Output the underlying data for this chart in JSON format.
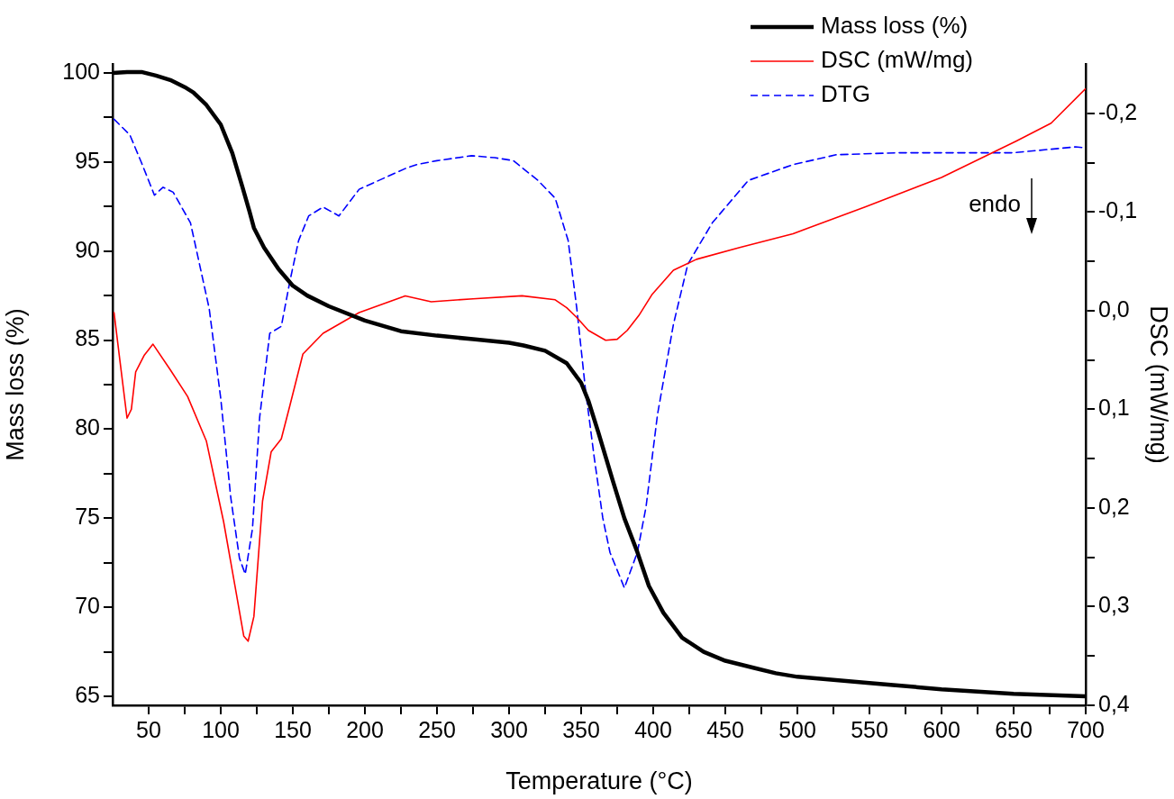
{
  "chart_data": {
    "type": "line",
    "xlabel": "Temperature (°C)",
    "ylabel": "Mass loss (%)",
    "y2label": "DSC (mW/mg)",
    "xlim": [
      25,
      700
    ],
    "xticks": [
      50,
      {
        "value": 75,
        "label": null
      },
      100,
      {
        "value": 125,
        "label": null
      },
      150,
      {
        "value": 175,
        "label": null
      },
      200,
      {
        "value": 225,
        "label": null
      },
      250,
      {
        "value": 275,
        "label": null
      },
      300,
      {
        "value": 325,
        "label": null
      },
      350,
      {
        "value": 375,
        "label": null
      },
      400,
      {
        "value": 425,
        "label": null
      },
      450,
      {
        "value": 475,
        "label": null
      },
      500,
      {
        "value": 525,
        "label": null
      },
      550,
      {
        "value": 575,
        "label": null
      },
      600,
      {
        "value": 625,
        "label": null
      },
      650,
      {
        "value": 675,
        "label": null
      },
      700
    ],
    "ylim": [
      64.5,
      100.5
    ],
    "yticks": [
      65,
      {
        "value": 67.5,
        "label": null
      },
      70,
      {
        "value": 72.5,
        "label": null
      },
      75,
      {
        "value": 77.5,
        "label": null
      },
      80,
      {
        "value": 82.5,
        "label": null
      },
      85,
      {
        "value": 87.5,
        "label": null
      },
      90,
      {
        "value": 92.5,
        "label": null
      },
      95,
      {
        "value": 97.5,
        "label": null
      },
      100
    ],
    "y2lim": [
      0.4,
      -0.25
    ],
    "y2ticks": [
      {
        "value": -0.2,
        "label": "-0,2"
      },
      {
        "value": -0.15,
        "label": null
      },
      {
        "value": -0.1,
        "label": "-0,1"
      },
      {
        "value": -0.05,
        "label": null
      },
      {
        "value": 0,
        "label": "0,0"
      },
      {
        "value": 0.05,
        "label": null
      },
      {
        "value": 0.1,
        "label": "0,1"
      },
      {
        "value": 0.15,
        "label": null
      },
      {
        "value": 0.2,
        "label": "0,2"
      },
      {
        "value": 0.25,
        "label": null
      },
      {
        "value": 0.3,
        "label": "0,3"
      },
      {
        "value": 0.35,
        "label": null
      },
      {
        "value": 0.4,
        "label": "0,4"
      }
    ],
    "grid": false,
    "legend": "top right",
    "marker": "none",
    "annotations": [
      "endo"
    ],
    "series": [
      {
        "name": "Mass loss (%)",
        "color": "#000000",
        "line_style": "solid",
        "x": [
          25,
          35,
          45,
          55,
          65,
          75,
          81,
          90,
          100,
          108,
          115,
          120,
          123,
          130,
          140,
          150,
          160,
          175,
          200,
          225,
          250,
          275,
          300,
          310,
          325,
          340,
          350,
          355,
          362,
          372,
          380,
          389,
          397,
          407,
          420,
          435,
          450,
          470,
          485,
          500,
          550,
          600,
          650,
          700
        ],
        "values": [
          100,
          100.05,
          100.05,
          99.85,
          99.6,
          99.2,
          98.9,
          98.2,
          97.1,
          95.5,
          93.6,
          92.2,
          91.3,
          90.2,
          89.0,
          88.05,
          87.5,
          86.9,
          86.1,
          85.5,
          85.25,
          85.05,
          84.85,
          84.7,
          84.4,
          83.7,
          82.6,
          81.6,
          79.8,
          77.1,
          75.0,
          73.1,
          71.2,
          69.7,
          68.3,
          67.5,
          67.0,
          66.6,
          66.3,
          66.1,
          65.75,
          65.4,
          65.15,
          65.0
        ]
      },
      {
        "name": "DSC (mW/mg)",
        "color": "#ff0000",
        "line_style": "solid",
        "axis": "y2",
        "x": [
          26,
          30,
          35,
          38,
          41,
          47,
          53,
          65,
          77,
          90,
          102,
          110,
          116,
          119,
          123,
          129,
          135,
          142,
          148,
          157,
          171,
          196,
          228,
          246,
          275,
          309,
          332,
          340,
          347,
          355,
          367,
          375,
          382,
          390,
          399,
          414,
          430,
          460,
          497,
          547,
          600,
          652,
          676,
          700
        ],
        "values": [
          0.002,
          0.05,
          0.109,
          0.1,
          0.062,
          0.045,
          0.034,
          0.06,
          0.087,
          0.132,
          0.214,
          0.28,
          0.33,
          0.335,
          0.31,
          0.193,
          0.143,
          0.13,
          0.096,
          0.044,
          0.023,
          0.002,
          -0.015,
          -0.009,
          -0.012,
          -0.015,
          -0.011,
          -0.003,
          0.007,
          0.02,
          0.03,
          0.029,
          0.02,
          0.005,
          -0.016,
          -0.041,
          -0.052,
          -0.064,
          -0.078,
          -0.105,
          -0.135,
          -0.172,
          -0.19,
          -0.225
        ]
      },
      {
        "name": "DTG",
        "color": "#0000ff",
        "line_style": "dashed",
        "axis": "y2",
        "x": [
          26,
          37,
          45,
          54,
          60,
          67,
          79,
          92,
          100,
          107,
          113,
          117,
          122,
          127,
          134,
          142,
          148,
          154,
          161,
          171,
          182,
          196,
          228,
          236,
          250,
          274,
          290,
          303,
          320,
          332,
          341,
          347,
          353,
          359,
          365,
          370,
          380,
          389,
          395,
          403,
          414,
          424,
          441,
          466,
          497,
          527,
          570,
          610,
          650,
          693,
          700
        ],
        "values": [
          -0.194,
          -0.178,
          -0.15,
          -0.117,
          -0.125,
          -0.12,
          -0.089,
          -0.002,
          0.089,
          0.19,
          0.251,
          0.267,
          0.221,
          0.108,
          0.023,
          0.016,
          -0.03,
          -0.071,
          -0.096,
          -0.105,
          -0.096,
          -0.123,
          -0.144,
          -0.148,
          -0.152,
          -0.157,
          -0.155,
          -0.152,
          -0.132,
          -0.114,
          -0.071,
          -0.002,
          0.08,
          0.148,
          0.21,
          0.245,
          0.281,
          0.245,
          0.199,
          0.105,
          0.014,
          -0.047,
          -0.089,
          -0.132,
          -0.148,
          -0.158,
          -0.16,
          -0.16,
          -0.16,
          -0.166,
          -0.165
        ]
      }
    ]
  }
}
